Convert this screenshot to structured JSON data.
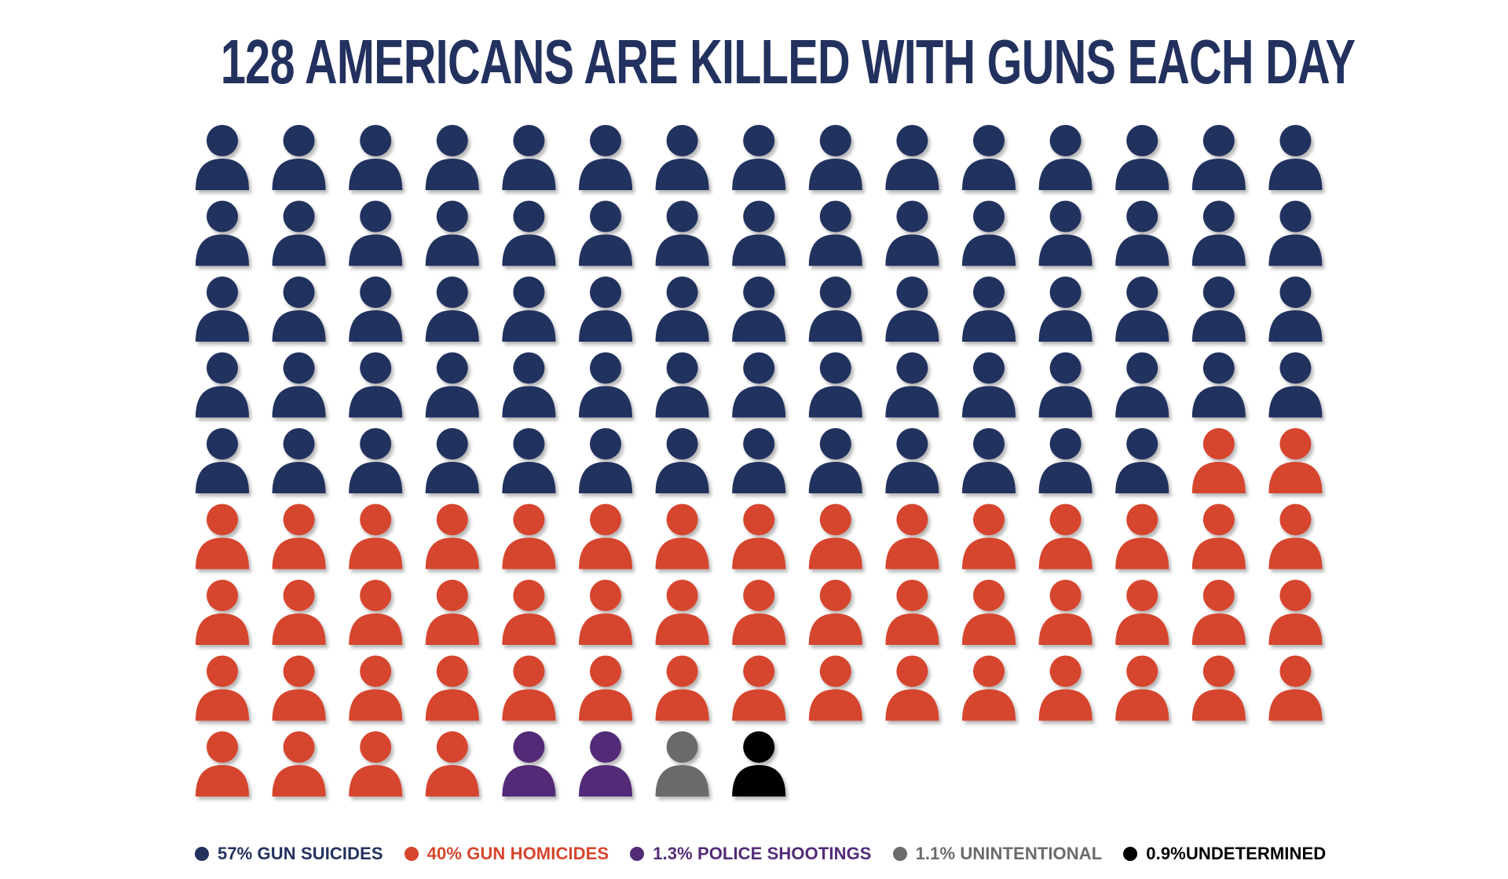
{
  "title": "128 AMERICANS ARE KILLED WITH GUNS EACH DAY",
  "chart_data": {
    "type": "pictogram",
    "title": "128 AMERICANS ARE KILLED WITH GUNS EACH DAY",
    "unit_icon": "person-icon",
    "total": 128,
    "columns": 15,
    "series": [
      {
        "name": "GUN SUICIDES",
        "label": "57% GUN SUICIDES",
        "percent": 57,
        "count": 73,
        "color": "#23315f"
      },
      {
        "name": "GUN HOMICIDES",
        "label": "40% GUN HOMICIDES",
        "percent": 40,
        "count": 51,
        "color": "#d6452d"
      },
      {
        "name": "POLICE SHOOTINGS",
        "label": "1.3% POLICE SHOOTINGS",
        "percent": 1.3,
        "count": 2,
        "color": "#532b77"
      },
      {
        "name": "UNINTENTIONAL",
        "label": "1.1% UNINTENTIONAL",
        "percent": 1.1,
        "count": 1,
        "color": "#6b6b6b"
      },
      {
        "name": "UNDETERMINED",
        "label": "0.9%UNDETERMINED",
        "percent": 0.9,
        "count": 1,
        "color": "#000000"
      }
    ],
    "legend_position": "bottom"
  }
}
